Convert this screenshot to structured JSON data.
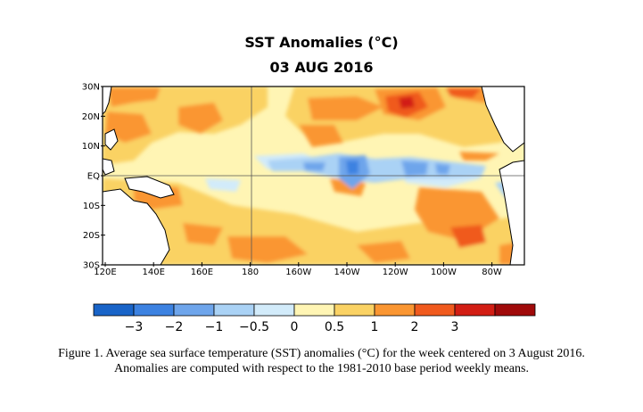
{
  "title": "SST Anomalies (°C)",
  "date": "03 AUG 2016",
  "map": {
    "lat_labels": [
      "30N",
      "20N",
      "10N",
      "EQ",
      "10S",
      "20S",
      "30S"
    ],
    "lon_labels": [
      "120E",
      "140E",
      "160E",
      "180",
      "160W",
      "140W",
      "120W",
      "100W",
      "80W"
    ],
    "colors": {
      "land": "#ffffff",
      "coast": "#000000",
      "grid": "#555555"
    }
  },
  "colorbar": {
    "labels": [
      "−3",
      "−2",
      "−1",
      "−0.5",
      "0",
      "0.5",
      "1",
      "2",
      "3"
    ],
    "colors": [
      "#1964c8",
      "#3c82e1",
      "#6ea5eb",
      "#aad2f5",
      "#d2ebfa",
      "#fff5b4",
      "#fad264",
      "#fa9632",
      "#f05a1e",
      "#d21e14",
      "#a00a0a"
    ]
  },
  "caption": {
    "line1": "Figure 1. Average sea surface temperature (SST) anomalies (°C) for the week centered on 3 August 2016.",
    "line2": "Anomalies are computed with respect to the 1981-2010 base period weekly means."
  }
}
